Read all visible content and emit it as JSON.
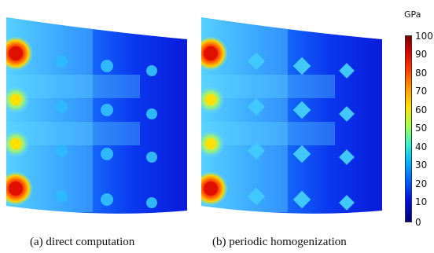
{
  "panels": [
    {
      "caption": "(a) direct computation"
    },
    {
      "caption": "(b) periodic homogenization"
    }
  ],
  "colorbar": {
    "unit": "GPa",
    "ticks": [
      "100",
      "90",
      "80",
      "70",
      "60",
      "50",
      "40",
      "30",
      "20",
      "10",
      "0"
    ],
    "colors": [
      "#7a0000",
      "#ff3a00",
      "#ffe000",
      "#3cf0c8",
      "#0060ff",
      "#00007a"
    ]
  }
}
